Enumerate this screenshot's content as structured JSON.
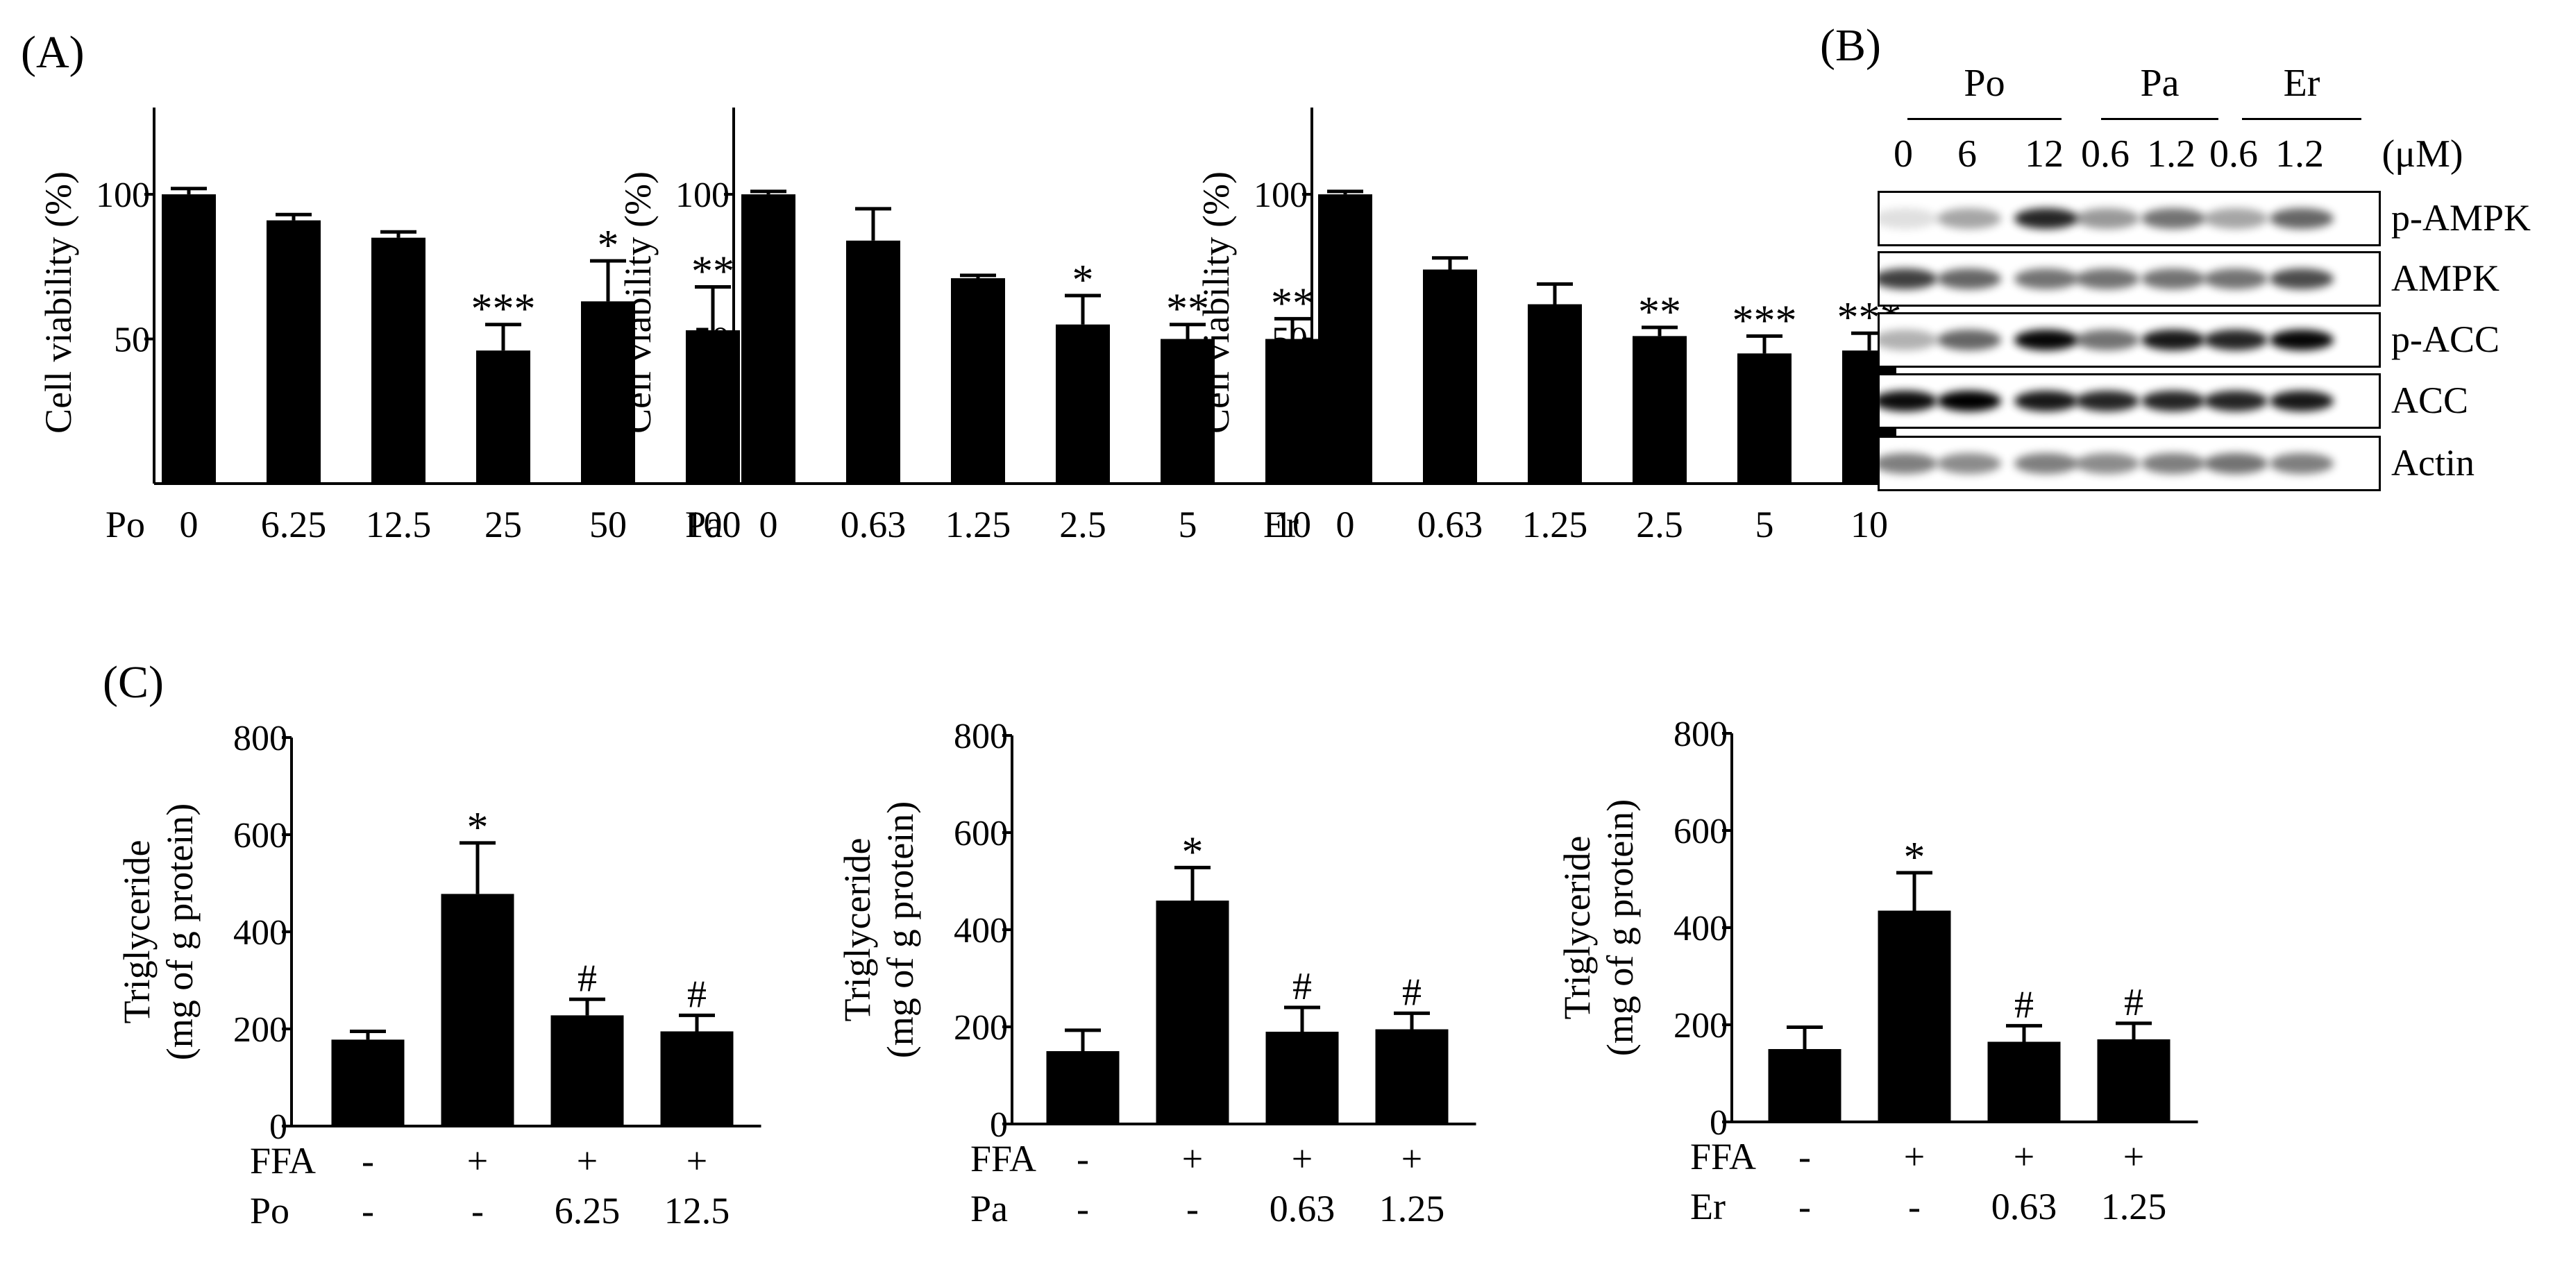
{
  "panel_labels": {
    "a": "(A)",
    "b": "(B)",
    "c": "(C)"
  },
  "chart_data": [
    {
      "type": "bar",
      "panel": "A",
      "ylabel": "Cell viability (%)",
      "compound": "Po",
      "categories": [
        "0",
        "6.25",
        "12.5",
        "25",
        "50",
        "100"
      ],
      "values": [
        100,
        91,
        85,
        46,
        63,
        53
      ],
      "errors": [
        2,
        2,
        2,
        9,
        14,
        15
      ],
      "significance": [
        "",
        "",
        "",
        "***",
        "*",
        "**"
      ],
      "ylim": [
        0,
        130
      ],
      "yticks": [
        50,
        100
      ],
      "ytick_labels": [
        "50",
        "100"
      ]
    },
    {
      "type": "bar",
      "panel": "A",
      "ylabel": "Cell viability (%)",
      "compound": "Pa",
      "categories": [
        "0",
        "0.63",
        "1.25",
        "2.5",
        "5",
        "10"
      ],
      "values": [
        100,
        84,
        71,
        55,
        50,
        50
      ],
      "errors": [
        1,
        11,
        1,
        10,
        5,
        7
      ],
      "significance": [
        "",
        "",
        "",
        "*",
        "**",
        "**"
      ],
      "ylim": [
        0,
        130
      ],
      "yticks": [
        50,
        100
      ],
      "ytick_labels": [
        "50",
        "100"
      ]
    },
    {
      "type": "bar",
      "panel": "A",
      "ylabel": "Cell viability (%)",
      "compound": "Er",
      "categories": [
        "0",
        "0.63",
        "1.25",
        "2.5",
        "5",
        "10"
      ],
      "values": [
        100,
        74,
        62,
        51,
        45,
        46
      ],
      "errors": [
        1,
        4,
        7,
        3,
        6,
        6
      ],
      "significance": [
        "",
        "",
        "",
        "**",
        "***",
        "***"
      ],
      "ylim": [
        0,
        130
      ],
      "yticks": [
        50,
        100
      ],
      "ytick_labels": [
        "50",
        "100"
      ]
    },
    {
      "type": "bar",
      "panel": "C",
      "ylabel_lines": [
        "Triglyceride",
        "(mg of g protein)"
      ],
      "row_labels": [
        "FFA",
        "Po"
      ],
      "rows": [
        [
          "-",
          "+",
          "+",
          "+"
        ],
        [
          "-",
          "-",
          "6.25",
          "12.5"
        ]
      ],
      "values": [
        178,
        478,
        228,
        195
      ],
      "errors": [
        17,
        105,
        33,
        33
      ],
      "significance": [
        "",
        "*",
        "#",
        "#"
      ],
      "ylim": [
        0,
        800
      ],
      "yticks": [
        0,
        200,
        400,
        600,
        800
      ],
      "ytick_labels": [
        "0",
        "200",
        "400",
        "600",
        "800"
      ]
    },
    {
      "type": "bar",
      "panel": "C",
      "ylabel_lines": [
        "Triglyceride",
        "(mg of g protein)"
      ],
      "row_labels": [
        "FFA",
        "Pa"
      ],
      "rows": [
        [
          "-",
          "+",
          "+",
          "+"
        ],
        [
          "-",
          "-",
          "0.63",
          "1.25"
        ]
      ],
      "values": [
        150,
        460,
        190,
        195
      ],
      "errors": [
        43,
        68,
        50,
        33
      ],
      "significance": [
        "",
        "*",
        "#",
        "#"
      ],
      "ylim": [
        0,
        800
      ],
      "yticks": [
        0,
        200,
        400,
        600,
        800
      ],
      "ytick_labels": [
        "0",
        "200",
        "400",
        "600",
        "800"
      ]
    },
    {
      "type": "bar",
      "panel": "C",
      "ylabel_lines": [
        "Triglyceride",
        "(mg of g protein)"
      ],
      "row_labels": [
        "FFA",
        "Er"
      ],
      "rows": [
        [
          "-",
          "+",
          "+",
          "+"
        ],
        [
          "-",
          "-",
          "0.63",
          "1.25"
        ]
      ],
      "values": [
        150,
        435,
        165,
        170
      ],
      "errors": [
        45,
        78,
        33,
        33
      ],
      "significance": [
        "",
        "*",
        "#",
        "#"
      ],
      "ylim": [
        0,
        800
      ],
      "yticks": [
        0,
        200,
        400,
        600,
        800
      ],
      "ytick_labels": [
        "0",
        "200",
        "400",
        "600",
        "800"
      ]
    }
  ],
  "western_blot": {
    "groups": [
      {
        "label": "Po",
        "lanes": [
          "0",
          "6",
          "12"
        ]
      },
      {
        "label": "Pa",
        "lanes": [
          "0.6",
          "1.2"
        ]
      },
      {
        "label": "Er",
        "lanes": [
          "0.6",
          "1.2"
        ]
      }
    ],
    "unit": "(μM)",
    "blots": [
      {
        "label": "p-AMPK",
        "intensity": [
          0.12,
          0.35,
          0.85,
          0.4,
          0.55,
          0.35,
          0.6
        ]
      },
      {
        "label": "AMPK",
        "intensity": [
          0.75,
          0.6,
          0.55,
          0.55,
          0.55,
          0.55,
          0.7
        ]
      },
      {
        "label": "p-ACC",
        "intensity": [
          0.3,
          0.6,
          0.97,
          0.55,
          0.9,
          0.85,
          0.97
        ]
      },
      {
        "label": "ACC",
        "intensity": [
          0.95,
          1.0,
          0.9,
          0.85,
          0.85,
          0.85,
          0.9
        ]
      },
      {
        "label": "Actin",
        "intensity": [
          0.5,
          0.45,
          0.5,
          0.45,
          0.5,
          0.55,
          0.5
        ]
      }
    ]
  }
}
